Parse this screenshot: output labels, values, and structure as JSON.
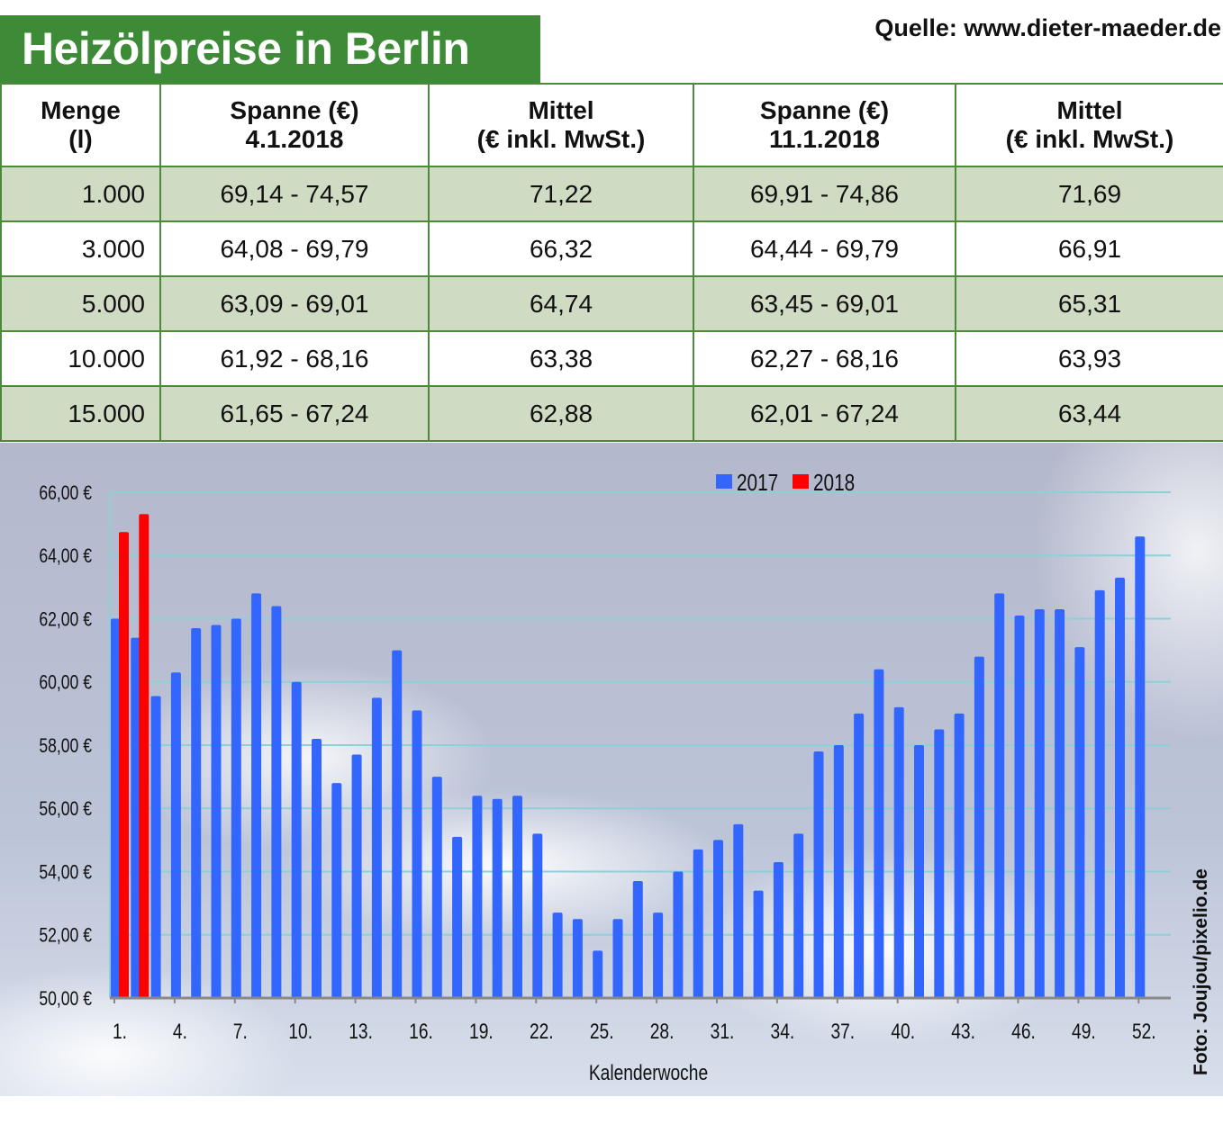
{
  "title": "Heizölpreise in Berlin",
  "source": "Quelle: www.dieter-maeder.de",
  "photo_credit": "Foto: Joujou/pixelio.de",
  "colors": {
    "title_bg": "#3d8b37",
    "row_alt": "#d0dbc3",
    "series_2017": "#3366ff",
    "series_2018": "#ff0000",
    "grid": "#8fcfd8"
  },
  "table": {
    "headers": [
      [
        "Menge",
        "(l)"
      ],
      [
        "Spanne (€)",
        "4.1.2018"
      ],
      [
        "Mittel",
        "(€ inkl. MwSt.)"
      ],
      [
        "Spanne (€)",
        "11.1.2018"
      ],
      [
        "Mittel",
        "(€ inkl. MwSt.)"
      ]
    ],
    "rows": [
      [
        "1.000",
        "69,14 - 74,57",
        "71,22",
        "69,91 - 74,86",
        "71,69"
      ],
      [
        "3.000",
        "64,08 - 69,79",
        "66,32",
        "64,44 - 69,79",
        "66,91"
      ],
      [
        "5.000",
        "63,09 - 69,01",
        "64,74",
        "63,45 - 69,01",
        "65,31"
      ],
      [
        "10.000",
        "61,92 - 68,16",
        "63,38",
        "62,27 - 68,16",
        "63,93"
      ],
      [
        "15.000",
        "61,65 - 67,24",
        "62,88",
        "62,01 - 67,24",
        "63,44"
      ]
    ]
  },
  "chart_data": {
    "type": "bar",
    "xlabel": "Kalenderwoche",
    "ylabel": "",
    "ylim": [
      50,
      66
    ],
    "y_ticks": [
      "50,00 €",
      "52,00 €",
      "54,00 €",
      "56,00 €",
      "58,00 €",
      "60,00 €",
      "62,00 €",
      "64,00 €",
      "66,00 €"
    ],
    "x_tick_labels": [
      "1.",
      "4.",
      "7.",
      "10.",
      "13.",
      "16.",
      "19.",
      "22.",
      "25.",
      "28.",
      "31.",
      "34.",
      "37.",
      "40.",
      "43.",
      "46.",
      "49.",
      "52."
    ],
    "grid": true,
    "legend": "top-center",
    "weeks": [
      1,
      2,
      3,
      4,
      5,
      6,
      7,
      8,
      9,
      10,
      11,
      12,
      13,
      14,
      15,
      16,
      17,
      18,
      19,
      20,
      21,
      22,
      23,
      24,
      25,
      26,
      27,
      28,
      29,
      30,
      31,
      32,
      33,
      34,
      35,
      36,
      37,
      38,
      39,
      40,
      41,
      42,
      43,
      44,
      45,
      46,
      47,
      48,
      49,
      50,
      51,
      52
    ],
    "series": [
      {
        "name": "2017",
        "values": [
          62.0,
          61.4,
          59.55,
          60.3,
          61.7,
          61.8,
          62.0,
          62.8,
          62.4,
          60.0,
          58.2,
          56.8,
          57.7,
          59.5,
          61.0,
          59.1,
          57.0,
          55.1,
          56.4,
          56.3,
          56.4,
          55.2,
          52.7,
          52.5,
          51.5,
          52.5,
          53.7,
          52.7,
          54.0,
          54.7,
          55.0,
          55.5,
          53.4,
          54.3,
          55.2,
          57.8,
          58.0,
          59.0,
          60.4,
          59.2,
          58.0,
          58.5,
          59.0,
          60.8,
          62.8,
          62.1,
          62.3,
          62.3,
          61.1,
          62.9,
          63.3,
          64.6
        ]
      },
      {
        "name": "2018",
        "values": [
          64.74,
          65.31
        ]
      }
    ]
  }
}
